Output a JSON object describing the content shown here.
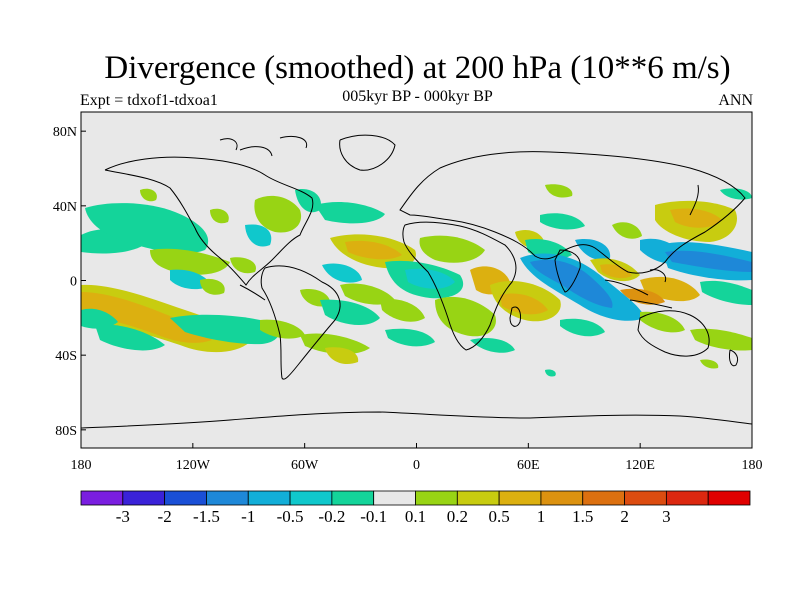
{
  "title": "Divergence (smoothed) at 200 hPa (10**6 m/s)",
  "subtitle": "005kyr BP - 000kyr BP",
  "left_label": "Expt = tdxof1-tdxoa1",
  "right_label": "ANN",
  "lat_ticks": [
    {
      "label": "80N",
      "lat": 80
    },
    {
      "label": "40N",
      "lat": 40
    },
    {
      "label": "0",
      "lat": 0
    },
    {
      "label": "40S",
      "lat": -40
    },
    {
      "label": "80S",
      "lat": -80
    }
  ],
  "lon_ticks": [
    {
      "label": "180",
      "lon": -180
    },
    {
      "label": "120W",
      "lon": -120
    },
    {
      "label": "60W",
      "lon": -60
    },
    {
      "label": "0",
      "lon": 0
    },
    {
      "label": "60E",
      "lon": 60
    },
    {
      "label": "120E",
      "lon": 120
    },
    {
      "label": "180",
      "lon": 180
    }
  ],
  "colorbar": {
    "colors": [
      "#7a1ee0",
      "#3a22d8",
      "#1a4fd6",
      "#1e88d8",
      "#12aed8",
      "#10c8cc",
      "#14d49a",
      "#e8e8e8",
      "#98d414",
      "#c8cc10",
      "#dcb010",
      "#dc9210",
      "#dc7010",
      "#dc4c10",
      "#dc2810",
      "#e00000"
    ],
    "labels": [
      "-3",
      "-2",
      "-1.5",
      "-1",
      "-0.5",
      "-0.2",
      "-0.1",
      "0.1",
      "0.2",
      "0.5",
      "1",
      "1.5",
      "2",
      "3"
    ]
  },
  "colors": {
    "background": "#e8e8e8",
    "pos_weak": "#98d414",
    "pos_mid": "#c8cc10",
    "pos_strong": "#dcb010",
    "neg_weak": "#14d49a",
    "neg_mid": "#10c8cc",
    "neg_strong": "#12aed8"
  }
}
